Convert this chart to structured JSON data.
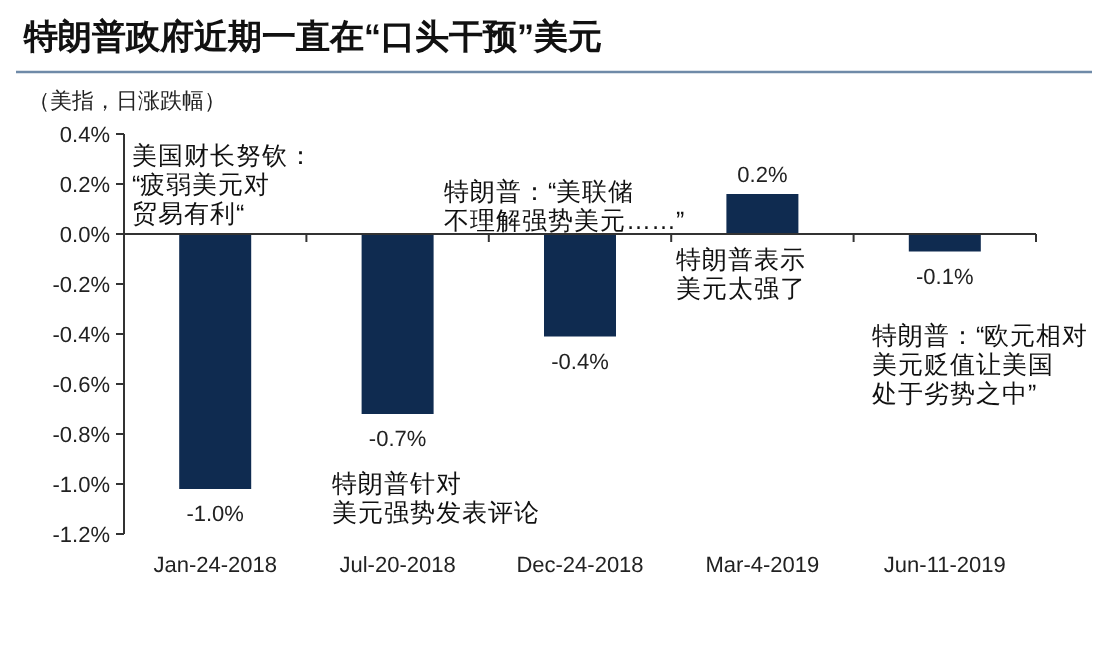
{
  "chart_data": {
    "type": "bar",
    "title": "特朗普政府近期一直在“口头干预”美元",
    "ylabel": "（美指，日涨跌幅）",
    "categories": [
      "Jan-24-2018",
      "Jul-20-2018",
      "Dec-24-2018",
      "Mar-4-2019",
      "Jun-11-2019"
    ],
    "values": [
      -1.02,
      -0.72,
      -0.41,
      0.16,
      -0.07
    ],
    "value_labels": [
      "-1.0%",
      "-0.7%",
      "-0.4%",
      "0.2%",
      "-0.1%"
    ],
    "color": "#0f2b50",
    "ylim": [
      -1.2,
      0.4
    ],
    "yticks": [
      {
        "value": 0.4,
        "label": "0.4%"
      },
      {
        "value": 0.2,
        "label": "0.2%"
      },
      {
        "value": 0,
        "label": "0.0%"
      },
      {
        "value": -0.2,
        "label": "-0.2%"
      },
      {
        "value": -0.4,
        "label": "-0.4%"
      },
      {
        "value": -0.6,
        "label": "-0.6%"
      },
      {
        "value": -0.8,
        "label": "-0.8%"
      },
      {
        "value": -1.0,
        "label": "-1.0%"
      },
      {
        "value": -1.2,
        "label": "-1.2%"
      }
    ],
    "annotations": [
      "美国财长努钦：“疲弱美元对贸易有利“",
      "特朗普针对美元强势发表评论",
      "特朗普：“美联储不理解强势美元……”",
      "特朗普表示美元太强了",
      "特朗普：“欧元相对美元贬值让美国处于劣势之中”"
    ]
  }
}
